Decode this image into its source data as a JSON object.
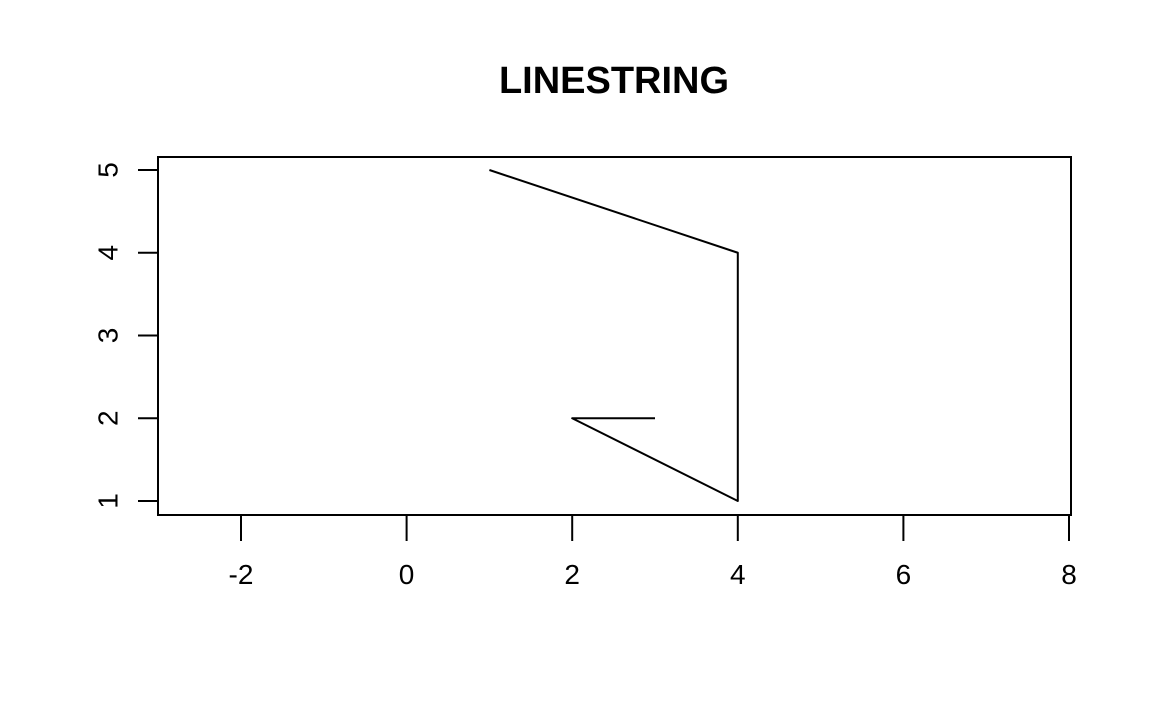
{
  "chart_data": {
    "type": "line",
    "title": "LINESTRING",
    "xlabel": "",
    "ylabel": "",
    "xlim": [
      -3,
      8
    ],
    "ylim": [
      1,
      5
    ],
    "x_ticks": [
      -2,
      0,
      2,
      4,
      6,
      8
    ],
    "x_tick_labels": [
      "-2",
      "0",
      "2",
      "4",
      "6",
      "8"
    ],
    "y_ticks": [
      1,
      2,
      3,
      4,
      5
    ],
    "y_tick_labels": [
      "1",
      "2",
      "3",
      "4",
      "5"
    ],
    "grid": false,
    "legend": "none",
    "line_color": "#000000",
    "series": [
      {
        "points": [
          {
            "x": 1,
            "y": 5
          },
          {
            "x": 4,
            "y": 4
          },
          {
            "x": 4,
            "y": 1
          },
          {
            "x": 2,
            "y": 2
          },
          {
            "x": 3,
            "y": 2
          }
        ]
      }
    ]
  }
}
